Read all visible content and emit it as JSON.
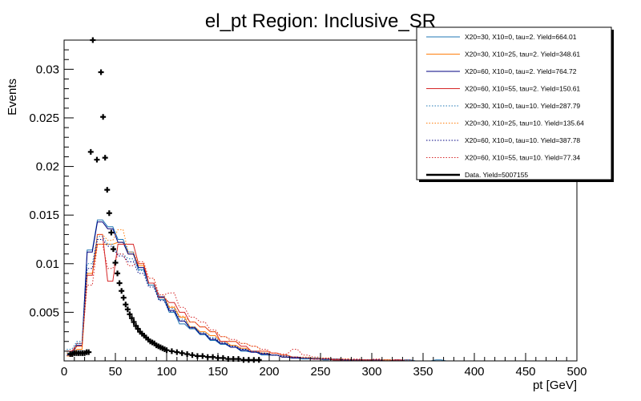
{
  "chart_data": {
    "type": "line",
    "title": "el_pt Region: Inclusive_SR",
    "xlabel": "pt [GeV]",
    "ylabel": "Events",
    "xlim": [
      0,
      500
    ],
    "ylim": [
      0,
      0.033
    ],
    "x_ticks": [
      0,
      50,
      100,
      150,
      200,
      250,
      300,
      350,
      400,
      450,
      500
    ],
    "y_ticks": [
      0.005,
      0.01,
      0.015,
      0.02,
      0.025,
      0.03
    ],
    "y_tick_labels": [
      "0.005",
      "0.01",
      "0.015",
      "0.02",
      "0.025",
      "0.03"
    ],
    "grid": false,
    "legend_position": "top-right",
    "bin_width": 5,
    "series": [
      {
        "name": "X20=30, X10=0, tau=2. Yield=664.01",
        "color": "#1f77b4",
        "style": "solid",
        "x": [
          5,
          15,
          25,
          35,
          45,
          55,
          65,
          75,
          85,
          95,
          105,
          115,
          125,
          135,
          145,
          155,
          165,
          175,
          185,
          195,
          205,
          215,
          225,
          235,
          245,
          255,
          265,
          275,
          285,
          295,
          305,
          315,
          325,
          335,
          345,
          355,
          365,
          375,
          385,
          395,
          405,
          415,
          425,
          435,
          445,
          455,
          465,
          475,
          485,
          495
        ],
        "values": [
          0.0008,
          0.0018,
          0.0114,
          0.0145,
          0.0138,
          0.0125,
          0.0112,
          0.0094,
          0.0078,
          0.0063,
          0.005,
          0.0038,
          0.0033,
          0.0027,
          0.0021,
          0.0017,
          0.0014,
          0.001,
          0.0009,
          0.0006,
          0.0006,
          0.0004,
          0.0003,
          0.0002,
          0.0003,
          0.0001,
          0.0002,
          0.0001,
          0.0001,
          0.0001,
          0.0001,
          0.0001,
          0,
          0.0001,
          0,
          0,
          0.0001,
          0,
          0,
          0,
          0,
          0,
          0,
          0,
          0,
          0,
          0,
          0,
          0,
          0
        ]
      },
      {
        "name": "X20=30, X10=25, tau=2. Yield=348.61",
        "color": "#ff7f0e",
        "style": "solid",
        "x": [
          5,
          15,
          25,
          35,
          45,
          55,
          65,
          75,
          85,
          95,
          105,
          115,
          125,
          135,
          145,
          155,
          165,
          175,
          185,
          195,
          205,
          215,
          225,
          235,
          245,
          255,
          265,
          275,
          285,
          295,
          305,
          315,
          325,
          335,
          345,
          355,
          365,
          375,
          385,
          395,
          405,
          415,
          425,
          435,
          445,
          455,
          465,
          475,
          485,
          495
        ],
        "values": [
          0.0005,
          0.0012,
          0.009,
          0.012,
          0.012,
          0.0122,
          0.011,
          0.0098,
          0.008,
          0.0065,
          0.0055,
          0.0045,
          0.0035,
          0.003,
          0.0026,
          0.002,
          0.0016,
          0.0013,
          0.001,
          0.0008,
          0.0006,
          0.0004,
          0.0004,
          0.0003,
          0.0002,
          0.0002,
          0.0001,
          0.0001,
          0.0001,
          0.0001,
          0,
          0.0001,
          0,
          0,
          0,
          0,
          0,
          0,
          0,
          0,
          0,
          0,
          0,
          0,
          0,
          0,
          0,
          0,
          0,
          0
        ]
      },
      {
        "name": "X20=60, X10=0, tau=2. Yield=764.72",
        "color": "#000080",
        "style": "solid",
        "x": [
          5,
          15,
          25,
          35,
          45,
          55,
          65,
          75,
          85,
          95,
          105,
          115,
          125,
          135,
          145,
          155,
          165,
          175,
          185,
          195,
          205,
          215,
          225,
          235,
          245,
          255,
          265,
          275,
          285,
          295,
          305,
          315,
          325,
          335,
          345,
          355,
          365,
          375,
          385,
          395,
          405,
          415,
          425,
          435,
          445,
          455,
          465,
          475,
          485,
          495
        ],
        "values": [
          0.0006,
          0.0016,
          0.0112,
          0.0143,
          0.0136,
          0.0122,
          0.011,
          0.0096,
          0.008,
          0.0066,
          0.0052,
          0.0041,
          0.0034,
          0.0028,
          0.0022,
          0.0018,
          0.0014,
          0.0011,
          0.0009,
          0.0007,
          0.0006,
          0.0004,
          0.0003,
          0.0003,
          0.0002,
          0.0002,
          0.0001,
          0.0001,
          0.0001,
          0.0001,
          0.0001,
          0,
          0.0001,
          0,
          0,
          0,
          0,
          0,
          0,
          0,
          0,
          0,
          0,
          0,
          0,
          0,
          0,
          0,
          0,
          0
        ]
      },
      {
        "name": "X20=60, X10=55, tau=2. Yield=150.61",
        "color": "#d62728",
        "style": "solid",
        "x": [
          5,
          15,
          25,
          35,
          45,
          55,
          65,
          75,
          85,
          95,
          105,
          115,
          125,
          135,
          145,
          155,
          165,
          175,
          185,
          195,
          205,
          215,
          225,
          235,
          245,
          255,
          265,
          275,
          285,
          295,
          305,
          315,
          325,
          335,
          345,
          355,
          365,
          375,
          385,
          395,
          405,
          415,
          425,
          435,
          445,
          455,
          465,
          475,
          485,
          495
        ],
        "values": [
          0.001,
          0.0015,
          0.0088,
          0.013,
          0.0082,
          0.012,
          0.012,
          0.01,
          0.008,
          0.0065,
          0.006,
          0.005,
          0.004,
          0.0035,
          0.003,
          0.002,
          0.002,
          0.0015,
          0.001,
          0.001,
          0.0008,
          0.0006,
          0.0004,
          0.0003,
          0.0002,
          0.0002,
          0.0001,
          0.0001,
          0.0001,
          0.0001,
          0.0001,
          0,
          0.0001,
          0,
          0,
          0,
          0,
          0,
          0,
          0,
          0,
          0,
          0,
          0,
          0,
          0,
          0,
          0,
          0,
          0
        ]
      },
      {
        "name": "X20=30, X10=0, tau=10. Yield=287.79",
        "color": "#1f77b4",
        "style": "dotted",
        "x": [
          5,
          15,
          25,
          35,
          45,
          55,
          65,
          75,
          85,
          95,
          105,
          115,
          125,
          135,
          145,
          155,
          165,
          175,
          185,
          195,
          205,
          215,
          225,
          235,
          245,
          255,
          265,
          275,
          285,
          295,
          305,
          315,
          325,
          335,
          345,
          355,
          365,
          375,
          385,
          395,
          405,
          415,
          425,
          435,
          445,
          455,
          465,
          475,
          485,
          495
        ],
        "values": [
          0.0012,
          0.002,
          0.01,
          0.0128,
          0.012,
          0.011,
          0.0105,
          0.0093,
          0.0078,
          0.0065,
          0.0054,
          0.0043,
          0.0035,
          0.0029,
          0.0024,
          0.0019,
          0.0015,
          0.0012,
          0.001,
          0.0008,
          0.0006,
          0.0005,
          0.0004,
          0.0003,
          0.0003,
          0.0002,
          0.0002,
          0.0001,
          0.0001,
          0.0001,
          0.0001,
          0.0001,
          0,
          0.0001,
          0,
          0,
          0,
          0,
          0,
          0,
          0,
          0,
          0,
          0,
          0,
          0,
          0,
          0,
          0,
          0
        ]
      },
      {
        "name": "X20=30, X10=25, tau=10. Yield=135.64",
        "color": "#ff7f0e",
        "style": "dotted",
        "x": [
          5,
          15,
          25,
          35,
          45,
          55,
          65,
          75,
          85,
          95,
          105,
          115,
          125,
          135,
          145,
          155,
          165,
          175,
          185,
          195,
          205,
          215,
          225,
          235,
          245,
          255,
          265,
          275,
          285,
          295,
          305,
          315,
          325,
          335,
          345,
          355,
          365,
          375,
          385,
          395,
          405,
          415,
          425,
          435,
          445,
          455,
          465,
          475,
          485,
          495
        ],
        "values": [
          0.0008,
          0.0015,
          0.009,
          0.013,
          0.0124,
          0.0135,
          0.0112,
          0.01,
          0.0085,
          0.0068,
          0.0056,
          0.0046,
          0.004,
          0.0035,
          0.003,
          0.0025,
          0.002,
          0.0018,
          0.0015,
          0.001,
          0.0008,
          0.0006,
          0.0004,
          0.0004,
          0.0003,
          0.0003,
          0.0002,
          0.0002,
          0.0001,
          0.0001,
          0.0001,
          0.0001,
          0.0001,
          0,
          0,
          0,
          0,
          0,
          0,
          0,
          0,
          0,
          0,
          0,
          0,
          0,
          0,
          0,
          0,
          0
        ]
      },
      {
        "name": "X20=60, X10=0, tau=10. Yield=387.78",
        "color": "#000080",
        "style": "dotted",
        "x": [
          5,
          15,
          25,
          35,
          45,
          55,
          65,
          75,
          85,
          95,
          105,
          115,
          125,
          135,
          145,
          155,
          165,
          175,
          185,
          195,
          205,
          215,
          225,
          235,
          245,
          255,
          265,
          275,
          285,
          295,
          305,
          315,
          325,
          335,
          345,
          355,
          365,
          375,
          385,
          395,
          405,
          415,
          425,
          435,
          445,
          455,
          465,
          475,
          485,
          495
        ],
        "values": [
          0.001,
          0.0018,
          0.0095,
          0.0125,
          0.0118,
          0.0108,
          0.0102,
          0.009,
          0.0076,
          0.0062,
          0.0051,
          0.0041,
          0.0034,
          0.0028,
          0.0023,
          0.0018,
          0.0015,
          0.0012,
          0.0009,
          0.0008,
          0.0006,
          0.0005,
          0.0004,
          0.0003,
          0.0002,
          0.0002,
          0.0002,
          0.0001,
          0.0001,
          0.0001,
          0.0001,
          0,
          0.0001,
          0,
          0,
          0,
          0,
          0,
          0,
          0,
          0,
          0,
          0,
          0,
          0,
          0,
          0,
          0,
          0,
          0
        ]
      },
      {
        "name": "X20=60, X10=55, tau=10. Yield=77.34",
        "color": "#d62728",
        "style": "dotted",
        "x": [
          5,
          15,
          25,
          35,
          45,
          55,
          65,
          75,
          85,
          95,
          105,
          115,
          125,
          135,
          145,
          155,
          165,
          175,
          185,
          195,
          205,
          215,
          225,
          235,
          245,
          255,
          265,
          275,
          285,
          295,
          305,
          315,
          325,
          335,
          345,
          355,
          365,
          375,
          385,
          395,
          405,
          415,
          425,
          435,
          445,
          455,
          465,
          475,
          485,
          495
        ],
        "values": [
          0.001,
          0.0018,
          0.0078,
          0.012,
          0.0095,
          0.011,
          0.0098,
          0.0102,
          0.0085,
          0.0068,
          0.007,
          0.0055,
          0.0045,
          0.004,
          0.0032,
          0.0025,
          0.0022,
          0.0018,
          0.0015,
          0.0012,
          0.0008,
          0.0007,
          0.0012,
          0.0006,
          0.0004,
          0.0003,
          0.0002,
          0.0002,
          0.0002,
          0.0001,
          0.0002,
          0.0001,
          0.0001,
          0.0001,
          0,
          0,
          0,
          0,
          0,
          0,
          0,
          0,
          0,
          0,
          0,
          0,
          0,
          0,
          0,
          0
        ]
      }
    ],
    "data_series": {
      "name": "Data. Yield=5007155",
      "color": "#000000",
      "style": "markers",
      "x": [
        6,
        8,
        10,
        12,
        14,
        16,
        18,
        20,
        22,
        24,
        26,
        28,
        32,
        36,
        38,
        40,
        42,
        44,
        46,
        48,
        50,
        52,
        54,
        56,
        58,
        60,
        62,
        64,
        66,
        68,
        70,
        72,
        74,
        76,
        78,
        80,
        82,
        84,
        86,
        88,
        90,
        92,
        94,
        96,
        98,
        100,
        105,
        110,
        115,
        120,
        125,
        130,
        135,
        140,
        145,
        150,
        155,
        160,
        165,
        170,
        175,
        180,
        185,
        190
      ],
      "values": [
        0.0007,
        0.0007,
        0.0008,
        0.0008,
        0.0008,
        0.0008,
        0.0008,
        0.0008,
        0.0009,
        0.0009,
        0.0215,
        0.033,
        0.0207,
        0.0297,
        0.0251,
        0.0209,
        0.0176,
        0.0152,
        0.0132,
        0.0115,
        0.0101,
        0.009,
        0.008,
        0.0072,
        0.0065,
        0.0058,
        0.0053,
        0.0048,
        0.0044,
        0.004,
        0.0036,
        0.0033,
        0.003,
        0.0028,
        0.0026,
        0.0024,
        0.0022,
        0.002,
        0.0019,
        0.0018,
        0.0016,
        0.0015,
        0.0014,
        0.0013,
        0.0012,
        0.0011,
        0.001,
        0.0009,
        0.0008,
        0.0007,
        0.0006,
        0.0005,
        0.0005,
        0.0004,
        0.0004,
        0.0003,
        0.0003,
        0.0002,
        0.0002,
        0.0002,
        0.0001,
        0.0001,
        0.0001,
        0.0001
      ]
    }
  }
}
